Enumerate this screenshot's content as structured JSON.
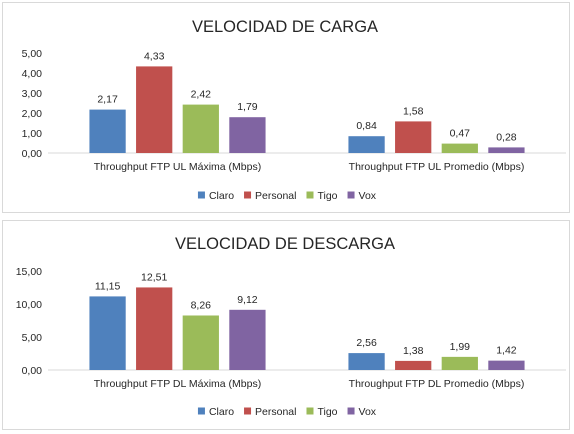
{
  "chart_data": [
    {
      "type": "bar",
      "title": "VELOCIDAD DE CARGA",
      "categories": [
        "Throughput FTP UL Máxima (Mbps)",
        "Throughput FTP UL Promedio (Mbps)"
      ],
      "series": [
        {
          "name": "Claro",
          "color": "#4f81bd",
          "values": [
            2.17,
            0.84
          ],
          "labels": [
            "2,17",
            "0,84"
          ]
        },
        {
          "name": "Personal",
          "color": "#c0504d",
          "values": [
            4.33,
            1.58
          ],
          "labels": [
            "4,33",
            "1,58"
          ]
        },
        {
          "name": "Tigo",
          "color": "#9bbb59",
          "values": [
            2.42,
            0.47
          ],
          "labels": [
            "2,42",
            "0,47"
          ]
        },
        {
          "name": "Vox",
          "color": "#8064a2",
          "values": [
            1.79,
            0.28
          ],
          "labels": [
            "1,79",
            "0,28"
          ]
        }
      ],
      "ylim": [
        0,
        5
      ],
      "yticks": [
        0,
        1,
        2,
        3,
        4,
        5
      ],
      "ytick_labels": [
        "0,00",
        "1,00",
        "2,00",
        "3,00",
        "4,00",
        "5,00"
      ],
      "legend": "bottom",
      "grid": false
    },
    {
      "type": "bar",
      "title": "VELOCIDAD DE DESCARGA",
      "categories": [
        "Throughput FTP DL Máxima (Mbps)",
        "Throughput FTP DL Promedio (Mbps)"
      ],
      "series": [
        {
          "name": "Claro",
          "color": "#4f81bd",
          "values": [
            11.15,
            2.56
          ],
          "labels": [
            "11,15",
            "2,56"
          ]
        },
        {
          "name": "Personal",
          "color": "#c0504d",
          "values": [
            12.51,
            1.38
          ],
          "labels": [
            "12,51",
            "1,38"
          ]
        },
        {
          "name": "Tigo",
          "color": "#9bbb59",
          "values": [
            8.26,
            1.99
          ],
          "labels": [
            "8,26",
            "1,99"
          ]
        },
        {
          "name": "Vox",
          "color": "#8064a2",
          "values": [
            9.12,
            1.42
          ],
          "labels": [
            "9,12",
            "1,42"
          ]
        }
      ],
      "ylim": [
        0,
        15
      ],
      "yticks": [
        0,
        5,
        10,
        15
      ],
      "ytick_labels": [
        "0,00",
        "5,00",
        "10,00",
        "15,00"
      ],
      "legend": "bottom",
      "grid": false
    }
  ]
}
